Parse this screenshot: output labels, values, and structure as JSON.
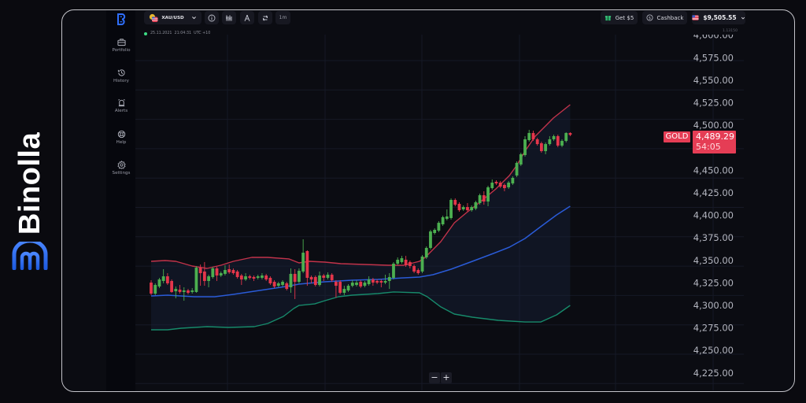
{
  "brand": {
    "name": "Binolla",
    "color": "#2f6fff"
  },
  "sidebar": {
    "items": [
      {
        "label": "Portfolio",
        "icon": "briefcase-icon"
      },
      {
        "label": "History",
        "icon": "history-icon"
      },
      {
        "label": "Alerts",
        "icon": "alarm-icon"
      },
      {
        "label": "Help",
        "icon": "lifebuoy-icon"
      },
      {
        "label": "Settings",
        "icon": "gear-icon"
      }
    ]
  },
  "toolbar": {
    "asset": "XAU/USD",
    "asset_icon": "gold-usd-flag-icon",
    "tools": [
      "info-icon",
      "indicators-icon",
      "drawing-tools-icon",
      "chart-type-icon"
    ],
    "timeframe": "1m"
  },
  "header_right": {
    "bonus_label": "Get $5",
    "cashback_label": "Cashback",
    "balance": "$9,505.55"
  },
  "status": {
    "timestamp": "25.11.2021  21:04:31  UTC +10"
  },
  "price_scale_corner": "1.13150",
  "zoom_controls": {
    "zoom_out": "−",
    "zoom_in": "+"
  },
  "price_label": {
    "asset_tag": "GOLD",
    "price": "4,489.29",
    "countdown": "54:05"
  },
  "colors": {
    "up": "#4caf50",
    "down": "#e5364b",
    "band_upper": "#c2334a",
    "band_middle": "#2a5bd7",
    "band_lower": "#178a6b",
    "price_tag": "#e53d55",
    "grid": "#161926",
    "axis_text": "#b3b5bf"
  },
  "chart_data": {
    "type": "candlestick",
    "title": "XAU/USD",
    "symbol_label": "GOLD",
    "last_price": 4489.29,
    "countdown": "54:05",
    "timeframe": "1m",
    "ylim": [
      4212,
      4612
    ],
    "y_ticks": [
      "4,600.00",
      "4,575.00",
      "4,550.00",
      "4,525.00",
      "4,500.00",
      "4,475.00",
      "4,450.00",
      "4,425.00",
      "4,400.00",
      "4,375.00",
      "4,350.00",
      "4,325.00",
      "4,300.00",
      "4,275.00",
      "4,250.00",
      "4,225.00"
    ],
    "y_tick_values": [
      4600,
      4575,
      4550,
      4525,
      4500,
      4475,
      4450,
      4425,
      4400,
      4375,
      4350,
      4325,
      4300,
      4275,
      4250,
      4225
    ],
    "grid": true,
    "indicator": "Bollinger Bands",
    "candle_format": [
      "open",
      "high",
      "low",
      "close"
    ],
    "candles": [
      [
        4325.3,
        4328.0,
        4311.4,
        4313.1
      ],
      [
        4313.1,
        4324.5,
        4311.4,
        4322.7
      ],
      [
        4321.0,
        4330.6,
        4319.2,
        4328.8
      ],
      [
        4327.1,
        4340.2,
        4324.5,
        4332.3
      ],
      [
        4332.3,
        4335.8,
        4322.7,
        4324.5
      ],
      [
        4327.1,
        4328.8,
        4314.0,
        4314.9
      ],
      [
        4315.7,
        4321.0,
        4307.9,
        4318.3
      ],
      [
        4317.5,
        4322.7,
        4313.1,
        4314.9
      ],
      [
        4314.9,
        4320.1,
        4305.2,
        4316.6
      ],
      [
        4316.6,
        4318.3,
        4312.2,
        4314.0
      ],
      [
        4314.9,
        4319.2,
        4313.1,
        4316.6
      ],
      [
        4314.9,
        4343.7,
        4314.0,
        4341.9
      ],
      [
        4341.9,
        4345.4,
        4321.8,
        4335.8
      ],
      [
        4337.6,
        4348.1,
        4321.8,
        4327.1
      ],
      [
        4327.1,
        4334.1,
        4320.1,
        4332.3
      ],
      [
        4331.5,
        4342.8,
        4329.7,
        4341.1
      ],
      [
        4341.1,
        4342.8,
        4327.1,
        4333.2
      ],
      [
        4333.2,
        4337.6,
        4331.5,
        4335.8
      ],
      [
        4335.0,
        4344.6,
        4333.2,
        4339.3
      ],
      [
        4340.2,
        4345.4,
        4335.0,
        4336.7
      ],
      [
        4339.3,
        4341.1,
        4334.1,
        4335.8
      ],
      [
        4337.6,
        4339.3,
        4329.7,
        4331.5
      ],
      [
        4333.2,
        4335.0,
        4322.7,
        4328.8
      ],
      [
        4328.8,
        4335.8,
        4327.1,
        4332.3
      ],
      [
        4332.3,
        4334.1,
        4328.8,
        4330.6
      ],
      [
        4331.5,
        4333.2,
        4327.1,
        4329.7
      ],
      [
        4330.6,
        4334.1,
        4328.8,
        4332.3
      ],
      [
        4330.6,
        4335.8,
        4328.8,
        4333.2
      ],
      [
        4333.2,
        4335.0,
        4327.1,
        4328.8
      ],
      [
        4330.6,
        4332.3,
        4322.7,
        4324.5
      ],
      [
        4326.2,
        4328.0,
        4319.2,
        4321.0
      ],
      [
        4321.8,
        4326.2,
        4320.1,
        4324.5
      ],
      [
        4322.7,
        4328.0,
        4321.0,
        4326.2
      ],
      [
        4324.5,
        4326.2,
        4316.6,
        4318.3
      ],
      [
        4320.1,
        4341.1,
        4314.0,
        4335.0
      ],
      [
        4335.0,
        4340.2,
        4307.0,
        4326.2
      ],
      [
        4326.2,
        4341.1,
        4324.5,
        4338.4
      ],
      [
        4337.6,
        4373.4,
        4335.8,
        4358.5
      ],
      [
        4360.3,
        4361.2,
        4321.8,
        4330.6
      ],
      [
        4331.5,
        4333.2,
        4324.5,
        4328.8
      ],
      [
        4331.5,
        4333.2,
        4321.0,
        4322.7
      ],
      [
        4322.7,
        4337.6,
        4321.0,
        4333.2
      ],
      [
        4333.2,
        4335.0,
        4327.1,
        4330.6
      ],
      [
        4330.6,
        4336.7,
        4328.8,
        4334.1
      ],
      [
        4334.1,
        4335.8,
        4326.2,
        4328.0
      ],
      [
        4326.2,
        4328.0,
        4308.7,
        4321.8
      ],
      [
        4326.2,
        4328.0,
        4312.2,
        4314.0
      ],
      [
        4314.0,
        4321.8,
        4311.4,
        4318.3
      ],
      [
        4316.6,
        4323.6,
        4314.9,
        4321.8
      ],
      [
        4321.8,
        4328.0,
        4320.1,
        4325.3
      ],
      [
        4322.7,
        4328.0,
        4321.0,
        4325.3
      ],
      [
        4326.2,
        4328.0,
        4319.2,
        4321.0
      ],
      [
        4321.8,
        4327.1,
        4320.1,
        4325.3
      ],
      [
        4323.6,
        4332.3,
        4321.8,
        4328.8
      ],
      [
        4328.8,
        4330.6,
        4321.8,
        4325.3
      ],
      [
        4327.1,
        4328.8,
        4323.6,
        4325.3
      ],
      [
        4327.1,
        4328.8,
        4320.1,
        4325.3
      ],
      [
        4325.3,
        4334.1,
        4323.6,
        4327.1
      ],
      [
        4327.1,
        4335.8,
        4318.3,
        4331.5
      ],
      [
        4330.6,
        4348.1,
        4328.8,
        4346.3
      ],
      [
        4346.3,
        4353.3,
        4344.6,
        4350.7
      ],
      [
        4348.1,
        4355.0,
        4346.3,
        4352.4
      ],
      [
        4350.7,
        4355.0,
        4342.8,
        4344.6
      ],
      [
        4348.1,
        4349.8,
        4341.1,
        4343.7
      ],
      [
        4343.7,
        4345.4,
        4335.8,
        4337.6
      ],
      [
        4339.3,
        4341.1,
        4334.1,
        4335.8
      ],
      [
        4337.6,
        4355.9,
        4335.8,
        4354.2
      ],
      [
        4353.3,
        4365.5,
        4351.6,
        4363.8
      ],
      [
        4363.8,
        4383.9,
        4362.0,
        4382.1
      ],
      [
        4380.4,
        4385.6,
        4378.6,
        4383.9
      ],
      [
        4383.0,
        4393.5,
        4381.3,
        4391.7
      ],
      [
        4390.0,
        4399.6,
        4388.3,
        4397.9
      ],
      [
        4396.1,
        4406.6,
        4394.4,
        4398.7
      ],
      [
        4397.0,
        4418.8,
        4395.2,
        4417.1
      ],
      [
        4417.1,
        4418.8,
        4410.1,
        4411.8
      ],
      [
        4412.7,
        4414.5,
        4404.0,
        4405.7
      ],
      [
        4406.6,
        4411.0,
        4404.9,
        4409.2
      ],
      [
        4409.2,
        4413.6,
        4404.0,
        4405.7
      ],
      [
        4405.7,
        4411.0,
        4404.0,
        4409.2
      ],
      [
        4407.5,
        4416.2,
        4405.7,
        4414.5
      ],
      [
        4413.6,
        4424.1,
        4411.8,
        4422.3
      ],
      [
        4422.3,
        4426.7,
        4411.8,
        4415.3
      ],
      [
        4415.3,
        4432.8,
        4410.1,
        4431.1
      ],
      [
        4430.2,
        4439.8,
        4428.5,
        4436.3
      ],
      [
        4437.2,
        4438.9,
        4433.7,
        4435.4
      ],
      [
        4436.3,
        4438.1,
        4430.2,
        4431.9
      ],
      [
        4433.7,
        4435.4,
        4426.7,
        4430.2
      ],
      [
        4431.1,
        4438.1,
        4429.3,
        4436.3
      ],
      [
        4435.4,
        4443.3,
        4433.7,
        4441.6
      ],
      [
        4444.2,
        4459.9,
        4442.4,
        4458.2
      ],
      [
        4456.4,
        4469.5,
        4454.7,
        4467.8
      ],
      [
        4466.9,
        4487.9,
        4465.1,
        4484.4
      ],
      [
        4483.5,
        4494.9,
        4481.8,
        4491.4
      ],
      [
        4491.4,
        4494.0,
        4482.6,
        4484.4
      ],
      [
        4484.4,
        4486.1,
        4477.4,
        4479.1
      ],
      [
        4480.0,
        4481.8,
        4469.5,
        4471.3
      ],
      [
        4471.3,
        4480.9,
        4467.8,
        4479.1
      ],
      [
        4479.1,
        4487.9,
        4477.4,
        4484.4
      ],
      [
        4484.4,
        4489.6,
        4482.6,
        4487.9
      ],
      [
        4487.9,
        4489.6,
        4475.6,
        4477.4
      ],
      [
        4477.4,
        4484.4,
        4475.6,
        4482.6
      ],
      [
        4482.6,
        4492.2,
        4480.9,
        4491.4
      ],
      [
        4491.4,
        4492.2,
        4487.9,
        4489.3
      ]
    ],
    "bands": {
      "upper": [
        [
          0,
          4348.9
        ],
        [
          3.4,
          4349.8
        ],
        [
          6,
          4348.9
        ],
        [
          10,
          4343.7
        ],
        [
          13.6,
          4341.1
        ],
        [
          17,
          4344.6
        ],
        [
          20,
          4348.9
        ],
        [
          24.5,
          4353.3
        ],
        [
          28.4,
          4353.3
        ],
        [
          33.5,
          4351.6
        ],
        [
          36,
          4347.2
        ],
        [
          38.5,
          4348.9
        ],
        [
          42.3,
          4348.1
        ],
        [
          46.2,
          4346.3
        ],
        [
          52,
          4345.4
        ],
        [
          57.7,
          4344.6
        ],
        [
          61.5,
          4344.6
        ],
        [
          65.3,
          4348.9
        ],
        [
          66.7,
          4353.3
        ],
        [
          70.5,
          4370.8
        ],
        [
          73.8,
          4391.7
        ],
        [
          76.8,
          4403.1
        ],
        [
          80,
          4414.5
        ],
        [
          83.9,
          4429.3
        ],
        [
          87.2,
          4444.2
        ],
        [
          89,
          4455.5
        ],
        [
          91,
          4471.3
        ],
        [
          93.5,
          4487.9
        ],
        [
          96,
          4499.2
        ],
        [
          97.9,
          4508.0
        ],
        [
          102,
          4522.8
        ]
      ],
      "middle": [
        [
          0,
          4310.5
        ],
        [
          4,
          4311.4
        ],
        [
          10.5,
          4309.6
        ],
        [
          15.5,
          4309.6
        ],
        [
          20,
          4312.2
        ],
        [
          26.4,
          4316.6
        ],
        [
          32.8,
          4321.0
        ],
        [
          36,
          4323.6
        ],
        [
          42.3,
          4326.2
        ],
        [
          48.9,
          4328.0
        ],
        [
          55.2,
          4328.8
        ],
        [
          61.5,
          4330.6
        ],
        [
          65.3,
          4331.5
        ],
        [
          68.6,
          4334.1
        ],
        [
          73,
          4340.2
        ],
        [
          78.2,
          4348.9
        ],
        [
          83.3,
          4357.7
        ],
        [
          87.2,
          4364.7
        ],
        [
          91,
          4374.3
        ],
        [
          94.8,
          4387.4
        ],
        [
          98.7,
          4400.5
        ],
        [
          102,
          4410.1
        ]
      ],
      "lower": [
        [
          0,
          4272.9
        ],
        [
          4,
          4272.9
        ],
        [
          7.3,
          4274.7
        ],
        [
          13.6,
          4276.4
        ],
        [
          18.8,
          4275.5
        ],
        [
          25.1,
          4276.4
        ],
        [
          28.4,
          4279.9
        ],
        [
          32.2,
          4287.8
        ],
        [
          34.7,
          4296.5
        ],
        [
          36,
          4300.0
        ],
        [
          39.8,
          4301.7
        ],
        [
          42.3,
          4305.2
        ],
        [
          45.6,
          4309.6
        ],
        [
          48.9,
          4311.4
        ],
        [
          55.2,
          4313.1
        ],
        [
          59,
          4314.9
        ],
        [
          65.3,
          4314.0
        ],
        [
          67.2,
          4309.6
        ],
        [
          70.5,
          4298.3
        ],
        [
          73.8,
          4290.4
        ],
        [
          78.2,
          4286.9
        ],
        [
          84.5,
          4283.4
        ],
        [
          91,
          4281.6
        ],
        [
          94.8,
          4281.6
        ],
        [
          98.7,
          4289.5
        ],
        [
          102,
          4300.0
        ]
      ]
    }
  }
}
